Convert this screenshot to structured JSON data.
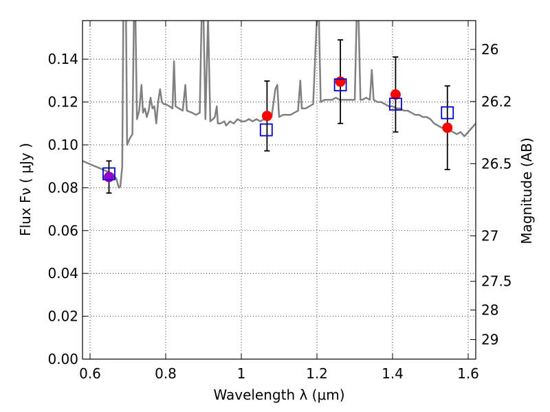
{
  "colors": {
    "model_spectrum": "#808080",
    "observed_points": "#ff0000",
    "model_photometry": "#0000cc",
    "purple_point": "#9900cc",
    "errorbar": "#000000"
  },
  "chart_data": {
    "type": "scatter",
    "xlabel": "Wavelength  λ (μm)",
    "ylabel": "Flux  Fν  ( μJy )",
    "y2label": "Magnitude (AB)",
    "xlim": [
      0.58,
      1.62
    ],
    "ylim": [
      0.0,
      0.158
    ],
    "grid": true,
    "x_ticks": [
      {
        "value": 0.6,
        "label": "0.6"
      },
      {
        "value": 0.8,
        "label": "0.8"
      },
      {
        "value": 1.0,
        "label": "1"
      },
      {
        "value": 1.2,
        "label": "1.2"
      },
      {
        "value": 1.4,
        "label": "1.4"
      },
      {
        "value": 1.6,
        "label": "1.6"
      }
    ],
    "y_ticks": [
      {
        "value": 0.0,
        "label": "0.00"
      },
      {
        "value": 0.02,
        "label": "0.02"
      },
      {
        "value": 0.04,
        "label": "0.04"
      },
      {
        "value": 0.06,
        "label": "0.06"
      },
      {
        "value": 0.08,
        "label": "0.08"
      },
      {
        "value": 0.1,
        "label": "0.10"
      },
      {
        "value": 0.12,
        "label": "0.12"
      },
      {
        "value": 0.14,
        "label": "0.14"
      }
    ],
    "mag_ticks": [
      {
        "value": 26.0,
        "label": "26"
      },
      {
        "value": 26.2,
        "label": "26.2"
      },
      {
        "value": 26.5,
        "label": "26.5"
      },
      {
        "value": 27.0,
        "label": "27"
      },
      {
        "value": 27.5,
        "label": "27.5"
      },
      {
        "value": 28.0,
        "label": "28"
      },
      {
        "value": 29.0,
        "label": "29"
      }
    ],
    "series": [
      {
        "kind": "model-spectrum",
        "points": [
          [
            0.58,
            0.0925
          ],
          [
            0.6,
            0.091
          ],
          [
            0.62,
            0.0895
          ],
          [
            0.64,
            0.088
          ],
          [
            0.66,
            0.0865
          ],
          [
            0.67,
            0.084
          ],
          [
            0.676,
            0.08
          ],
          [
            0.68,
            0.0805
          ],
          [
            0.685,
            0.09
          ],
          [
            0.688,
            0.16
          ],
          [
            0.695,
            0.16
          ],
          [
            0.698,
            0.1
          ],
          [
            0.705,
            0.103
          ],
          [
            0.712,
            0.105
          ],
          [
            0.716,
            0.16
          ],
          [
            0.72,
            0.16
          ],
          [
            0.724,
            0.112
          ],
          [
            0.73,
            0.116
          ],
          [
            0.736,
            0.128
          ],
          [
            0.74,
            0.115
          ],
          [
            0.745,
            0.117
          ],
          [
            0.75,
            0.113
          ],
          [
            0.755,
            0.116
          ],
          [
            0.76,
            0.122
          ],
          [
            0.765,
            0.117
          ],
          [
            0.77,
            0.118
          ],
          [
            0.775,
            0.11
          ],
          [
            0.78,
            0.12
          ],
          [
            0.785,
            0.126
          ],
          [
            0.79,
            0.12
          ],
          [
            0.795,
            0.119
          ],
          [
            0.8,
            0.119
          ],
          [
            0.81,
            0.118
          ],
          [
            0.818,
            0.117
          ],
          [
            0.822,
            0.139
          ],
          [
            0.826,
            0.118
          ],
          [
            0.835,
            0.117
          ],
          [
            0.845,
            0.116
          ],
          [
            0.852,
            0.128
          ],
          [
            0.856,
            0.116
          ],
          [
            0.87,
            0.115
          ],
          [
            0.88,
            0.114
          ],
          [
            0.89,
            0.115
          ],
          [
            0.895,
            0.16
          ],
          [
            0.9,
            0.16
          ],
          [
            0.905,
            0.112
          ],
          [
            0.912,
            0.16
          ],
          [
            0.918,
            0.111
          ],
          [
            0.925,
            0.112
          ],
          [
            0.93,
            0.113
          ],
          [
            0.935,
            0.118
          ],
          [
            0.938,
            0.11
          ],
          [
            0.945,
            0.11
          ],
          [
            0.955,
            0.111
          ],
          [
            0.96,
            0.109
          ],
          [
            0.97,
            0.111
          ],
          [
            0.98,
            0.11
          ],
          [
            0.99,
            0.112
          ],
          [
            1.0,
            0.111
          ],
          [
            1.01,
            0.111
          ],
          [
            1.02,
            0.112
          ],
          [
            1.03,
            0.111
          ],
          [
            1.04,
            0.112
          ],
          [
            1.05,
            0.111
          ],
          [
            1.06,
            0.112
          ],
          [
            1.07,
            0.113
          ],
          [
            1.08,
            0.113
          ],
          [
            1.09,
            0.126
          ],
          [
            1.095,
            0.128
          ],
          [
            1.1,
            0.113
          ],
          [
            1.11,
            0.114
          ],
          [
            1.12,
            0.114
          ],
          [
            1.13,
            0.114
          ],
          [
            1.14,
            0.115
          ],
          [
            1.15,
            0.116
          ],
          [
            1.156,
            0.13
          ],
          [
            1.16,
            0.117
          ],
          [
            1.17,
            0.117
          ],
          [
            1.18,
            0.118
          ],
          [
            1.19,
            0.119
          ],
          [
            1.195,
            0.14
          ],
          [
            1.2,
            0.16
          ],
          [
            1.205,
            0.16
          ],
          [
            1.21,
            0.12
          ],
          [
            1.22,
            0.121
          ],
          [
            1.23,
            0.121
          ],
          [
            1.24,
            0.121
          ],
          [
            1.25,
            0.122
          ],
          [
            1.26,
            0.121
          ],
          [
            1.27,
            0.121
          ],
          [
            1.28,
            0.121
          ],
          [
            1.29,
            0.121
          ],
          [
            1.3,
            0.121
          ],
          [
            1.305,
            0.16
          ],
          [
            1.31,
            0.16
          ],
          [
            1.315,
            0.121
          ],
          [
            1.32,
            0.121
          ],
          [
            1.33,
            0.122
          ],
          [
            1.34,
            0.121
          ],
          [
            1.345,
            0.135
          ],
          [
            1.35,
            0.121
          ],
          [
            1.36,
            0.12
          ],
          [
            1.37,
            0.12
          ],
          [
            1.38,
            0.119
          ],
          [
            1.39,
            0.118
          ],
          [
            1.4,
            0.118
          ],
          [
            1.41,
            0.117
          ],
          [
            1.42,
            0.117
          ],
          [
            1.43,
            0.116
          ],
          [
            1.44,
            0.116
          ],
          [
            1.45,
            0.115
          ],
          [
            1.46,
            0.114
          ],
          [
            1.47,
            0.114
          ],
          [
            1.48,
            0.113
          ],
          [
            1.49,
            0.113
          ],
          [
            1.5,
            0.112
          ],
          [
            1.51,
            0.11
          ],
          [
            1.52,
            0.109
          ],
          [
            1.53,
            0.108
          ],
          [
            1.54,
            0.108
          ],
          [
            1.55,
            0.107
          ],
          [
            1.56,
            0.106
          ],
          [
            1.57,
            0.105
          ],
          [
            1.58,
            0.106
          ],
          [
            1.59,
            0.104
          ],
          [
            1.6,
            0.106
          ],
          [
            1.61,
            0.108
          ],
          [
            1.62,
            0.11
          ]
        ]
      },
      {
        "kind": "observed",
        "points": [
          {
            "x": 0.65,
            "y": 0.085,
            "yerr": 0.0075
          },
          {
            "x": 1.068,
            "y": 0.1135,
            "yerr": 0.0163
          },
          {
            "x": 1.262,
            "y": 0.1295,
            "yerr": 0.0195
          },
          {
            "x": 1.408,
            "y": 0.1235,
            "yerr": 0.0175
          },
          {
            "x": 1.545,
            "y": 0.108,
            "yerr": 0.0195
          }
        ]
      },
      {
        "kind": "model-photometry",
        "points": [
          {
            "x": 0.65,
            "y": 0.0865
          },
          {
            "x": 1.066,
            "y": 0.107
          },
          {
            "x": 1.262,
            "y": 0.128
          },
          {
            "x": 1.408,
            "y": 0.119
          },
          {
            "x": 1.545,
            "y": 0.115
          }
        ]
      }
    ]
  }
}
